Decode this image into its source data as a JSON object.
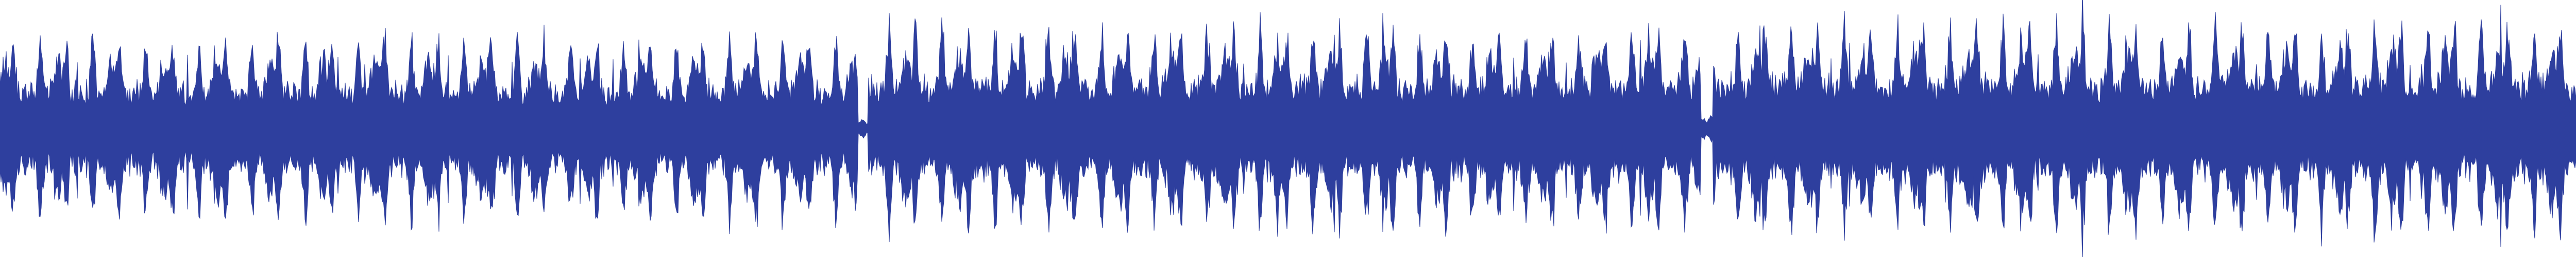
{
  "waveform": {
    "color": "#2e3f9e",
    "background": "#ffffff",
    "segments": [
      {
        "start": 0.0,
        "end": 0.333,
        "level": 0.72
      },
      {
        "start": 0.333,
        "end": 0.337,
        "level": 0.08
      },
      {
        "start": 0.337,
        "end": 0.66,
        "level": 0.8
      },
      {
        "start": 0.66,
        "end": 0.665,
        "level": 0.1
      },
      {
        "start": 0.665,
        "end": 1.0,
        "level": 0.82
      }
    ]
  }
}
